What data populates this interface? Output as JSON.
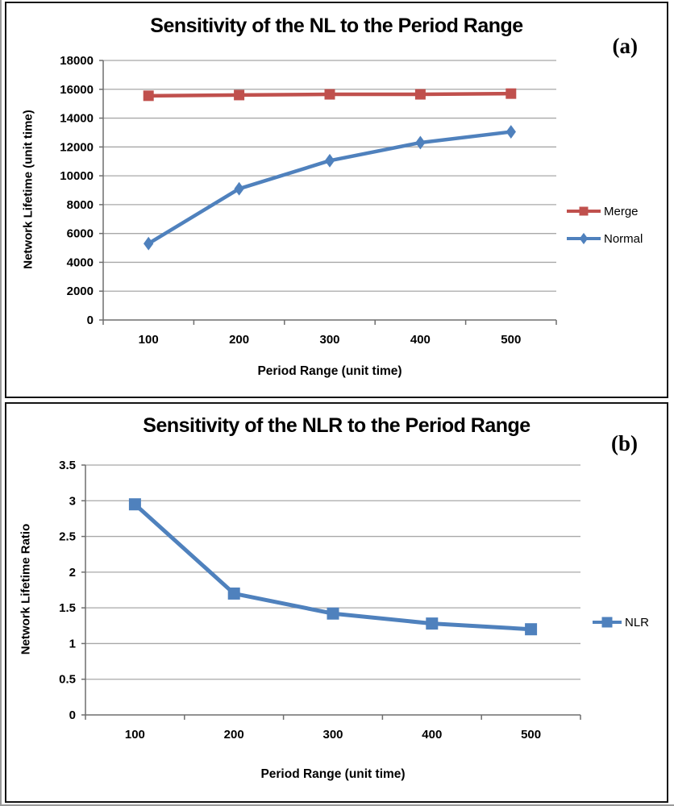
{
  "page": {
    "panel_a_label": "(a)",
    "panel_b_label": "(b)"
  },
  "colors": {
    "axis": "#6e6e6e",
    "grid": "#a8a8a8",
    "text": "#000000",
    "merge_red": "#C0504D",
    "normal_blue": "#4F81BD"
  },
  "chart_data": [
    {
      "type": "line",
      "title": "Sensitivity of the NL to the Period Range",
      "xlabel": "Period Range (unit time)",
      "ylabel": "Network Lifetime (unit time)",
      "categories": [
        100,
        200,
        300,
        400,
        500
      ],
      "series": [
        {
          "name": "Merge",
          "color": "#C0504D",
          "marker": "square",
          "values": [
            15550,
            15600,
            15650,
            15650,
            15700
          ]
        },
        {
          "name": "Normal",
          "color": "#4F81BD",
          "marker": "diamond",
          "values": [
            5300,
            9100,
            11050,
            12300,
            13050
          ]
        }
      ],
      "ylim": [
        0,
        18000
      ],
      "ytick_step": 2000,
      "grid": true,
      "legend_position": "right"
    },
    {
      "type": "line",
      "title": "Sensitivity of the NLR to the Period Range",
      "xlabel": "Period Range (unit time)",
      "ylabel": "Network Lifetime Ratio",
      "categories": [
        100,
        200,
        300,
        400,
        500
      ],
      "series": [
        {
          "name": "NLR",
          "color": "#4F81BD",
          "marker": "square",
          "values": [
            2.95,
            1.7,
            1.42,
            1.28,
            1.2
          ]
        }
      ],
      "ylim": [
        0,
        3.5
      ],
      "ytick_step": 0.5,
      "grid": true,
      "legend_position": "right"
    }
  ]
}
